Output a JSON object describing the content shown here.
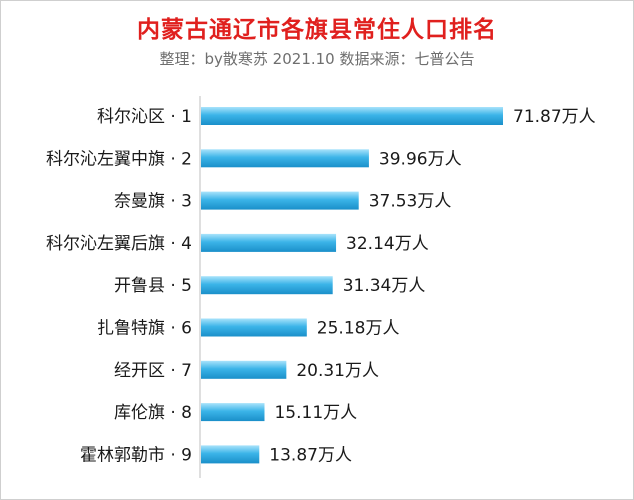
{
  "chart_data": {
    "type": "bar",
    "orientation": "horizontal",
    "title": "内蒙古通辽市各旗县常住人口排名",
    "subtitle": "整理：by散寒苏  2021.10  数据来源：七普公告",
    "categories": [
      "科尔沁区 · 1",
      "科尔沁左翼中旗 · 2",
      "奈曼旗 · 3",
      "科尔沁左翼后旗 · 4",
      "开鲁县 · 5",
      "扎鲁特旗 · 6",
      "经开区 · 7",
      "库伦旗 · 8",
      "霍林郭勒市 · 9"
    ],
    "values": [
      71.87,
      39.96,
      37.53,
      32.14,
      31.34,
      25.18,
      20.31,
      15.11,
      13.87
    ],
    "value_labels": [
      "71.87万人",
      "39.96万人",
      "37.53万人",
      "32.14万人",
      "31.34万人",
      "25.18万人",
      "20.31万人",
      "15.11万人",
      "13.87万人"
    ],
    "bar_color": "#3bb4e8",
    "title_color": "#e0201e",
    "grid": false,
    "legend": "none"
  }
}
